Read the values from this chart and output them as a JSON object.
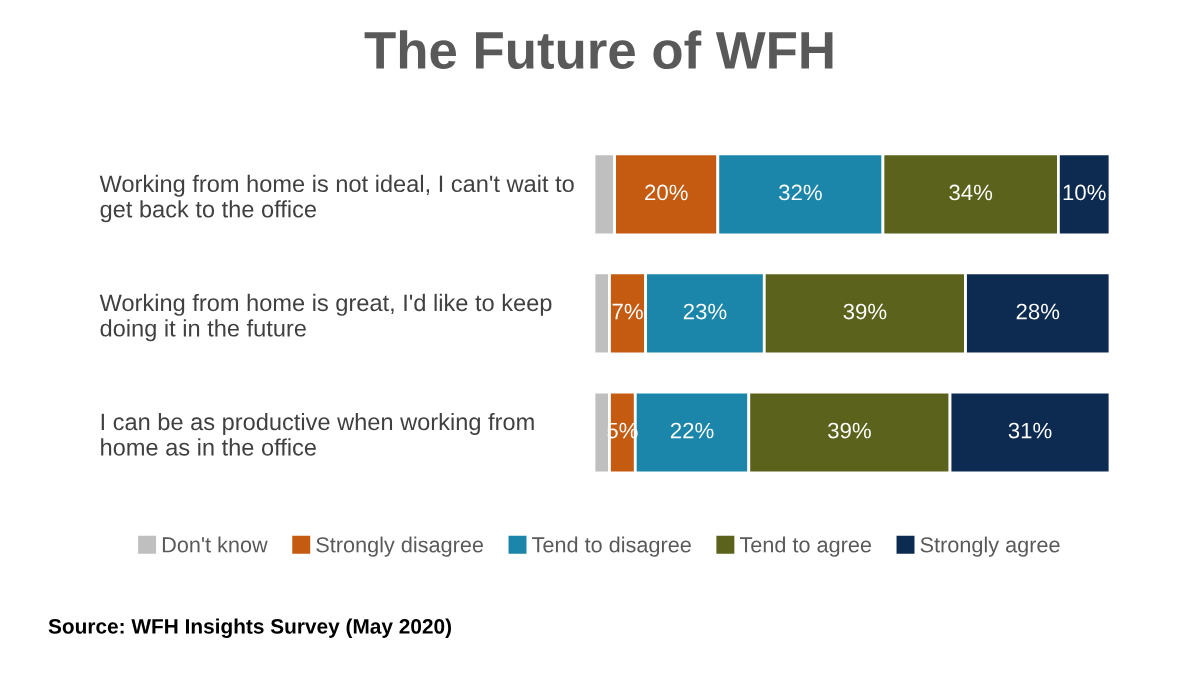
{
  "chart_data": {
    "type": "bar",
    "title": "The Future of WFH",
    "orientation": "horizontal",
    "stacked": true,
    "tick_labels": "y",
    "legend": "bottom",
    "categories": [
      "Working from home is not ideal, I can't wait to\nget back to the office",
      "Working from home is great, I'd like to keep\ndoing it in the future",
      "I can be as productive when working from\nhome as in the office"
    ],
    "series": [
      {
        "name": "Don't know",
        "color": "#bfbfbf",
        "values": [
          4,
          3,
          3
        ],
        "value_labels": [
          null,
          null,
          null
        ]
      },
      {
        "name": "Strongly disagree",
        "color": "#c55a11",
        "values": [
          20,
          7,
          5
        ],
        "value_labels": [
          "20%",
          "7%",
          "5%"
        ]
      },
      {
        "name": "Tend to disagree",
        "color": "#1b85aa",
        "values": [
          32,
          23,
          22
        ],
        "value_labels": [
          "32%",
          "23%",
          "22%"
        ]
      },
      {
        "name": "Tend to agree",
        "color": "#5b621c",
        "values": [
          34,
          39,
          39
        ],
        "value_labels": [
          "34%",
          "39%",
          "39%"
        ]
      },
      {
        "name": "Strongly agree",
        "color": "#0d2a50",
        "values": [
          10,
          28,
          31
        ],
        "value_labels": [
          "10%",
          "28%",
          "31%"
        ]
      }
    ],
    "annotations": [
      "Source: WFH Insights Survey (May 2020)"
    ]
  }
}
